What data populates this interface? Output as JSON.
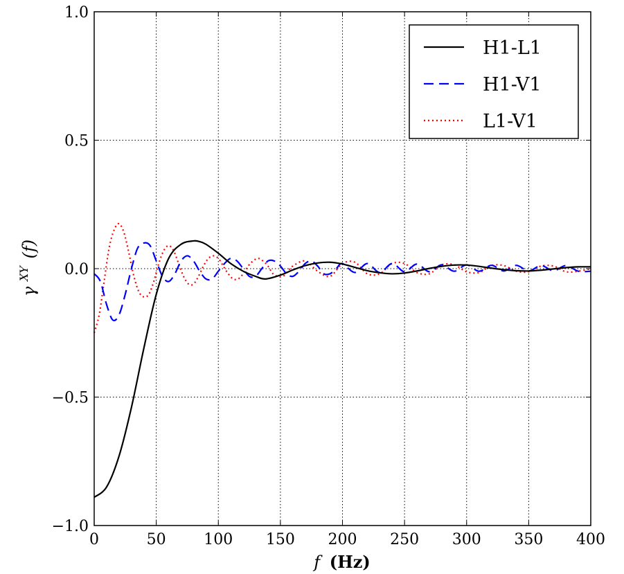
{
  "chart_data": {
    "type": "line",
    "xlabel_var": "f",
    "xlabel_unit": "(Hz)",
    "ylabel_base": "γ",
    "ylabel_sup": "XY",
    "ylabel_arg": "(f)",
    "xlim": [
      0,
      400
    ],
    "ylim": [
      -1.0,
      1.0
    ],
    "x_ticks": [
      0,
      50,
      100,
      150,
      200,
      250,
      300,
      350,
      400
    ],
    "x_tick_labels": [
      "0",
      "50",
      "100",
      "150",
      "200",
      "250",
      "300",
      "350",
      "400"
    ],
    "y_ticks": [
      -1.0,
      -0.5,
      0.0,
      0.5,
      1.0
    ],
    "y_tick_labels": [
      "−1.0",
      "−0.5",
      "0.0",
      "0.5",
      "1.0"
    ],
    "grid": true,
    "legend_position": "top-right",
    "series": [
      {
        "name": "H1-L1",
        "color": "#000000",
        "style": "solid",
        "x": [
          0,
          10,
          20,
          30,
          40,
          50,
          60,
          70,
          80,
          85,
          90,
          100,
          110,
          120,
          130,
          138,
          150,
          160,
          170,
          180,
          190,
          200,
          210,
          220,
          230,
          240,
          250,
          260,
          270,
          280,
          290,
          300,
          310,
          320,
          330,
          340,
          350,
          360,
          370,
          380,
          390,
          400
        ],
        "y": [
          -0.89,
          -0.85,
          -0.73,
          -0.54,
          -0.31,
          -0.1,
          0.04,
          0.095,
          0.108,
          0.105,
          0.095,
          0.06,
          0.02,
          -0.01,
          -0.03,
          -0.04,
          -0.025,
          -0.005,
          0.012,
          0.022,
          0.025,
          0.018,
          0.005,
          -0.008,
          -0.016,
          -0.02,
          -0.017,
          -0.009,
          0.001,
          0.009,
          0.014,
          0.014,
          0.009,
          0.002,
          -0.004,
          -0.008,
          -0.009,
          -0.006,
          -0.001,
          0.004,
          0.007,
          0.007
        ]
      },
      {
        "name": "H1-V1",
        "color": "#0000ff",
        "style": "dashed",
        "x": [
          0,
          5,
          10,
          15,
          20,
          25,
          30,
          35,
          40,
          45,
          50,
          55,
          60,
          65,
          70,
          75,
          80,
          85,
          90,
          95,
          100,
          105,
          110,
          115,
          120,
          125,
          130,
          135,
          140,
          145,
          150,
          155,
          160,
          165,
          170,
          175,
          180,
          185,
          190,
          195,
          200,
          210,
          220,
          230,
          240,
          250,
          260,
          270,
          280,
          290,
          300,
          310,
          320,
          330,
          340,
          350,
          360,
          370,
          380,
          390,
          400
        ],
        "y": [
          -0.02,
          -0.05,
          -0.14,
          -0.2,
          -0.18,
          -0.1,
          0.0,
          0.08,
          0.1,
          0.09,
          0.03,
          -0.03,
          -0.05,
          -0.02,
          0.03,
          0.05,
          0.03,
          -0.01,
          -0.04,
          -0.04,
          -0.01,
          0.02,
          0.04,
          0.03,
          0.0,
          -0.03,
          -0.03,
          0.0,
          0.03,
          0.03,
          0.01,
          -0.02,
          -0.03,
          -0.01,
          0.02,
          0.03,
          0.01,
          -0.02,
          -0.02,
          0.0,
          0.02,
          -0.015,
          0.02,
          -0.015,
          0.02,
          -0.012,
          0.018,
          -0.012,
          0.015,
          -0.01,
          0.015,
          -0.01,
          0.013,
          -0.009,
          0.013,
          -0.009,
          0.012,
          -0.008,
          0.012,
          -0.01,
          -0.01
        ]
      },
      {
        "name": "L1-V1",
        "color": "#ff0000",
        "style": "dotted",
        "x": [
          0,
          4,
          8,
          12,
          16,
          20,
          24,
          28,
          32,
          36,
          40,
          44,
          48,
          52,
          56,
          60,
          64,
          68,
          72,
          76,
          80,
          84,
          88,
          92,
          96,
          100,
          104,
          108,
          112,
          116,
          120,
          124,
          128,
          132,
          136,
          140,
          144,
          148,
          152,
          156,
          160,
          170,
          180,
          190,
          200,
          210,
          220,
          230,
          240,
          250,
          260,
          270,
          280,
          290,
          300,
          310,
          320,
          330,
          340,
          350,
          360,
          370,
          380,
          390,
          400
        ],
        "y": [
          -0.25,
          -0.18,
          -0.05,
          0.08,
          0.15,
          0.175,
          0.14,
          0.06,
          -0.03,
          -0.09,
          -0.11,
          -0.1,
          -0.05,
          0.02,
          0.07,
          0.09,
          0.07,
          0.02,
          -0.03,
          -0.06,
          -0.06,
          -0.03,
          0.01,
          0.04,
          0.05,
          0.04,
          0.01,
          -0.02,
          -0.04,
          -0.04,
          -0.02,
          0.01,
          0.03,
          0.04,
          0.03,
          0.01,
          -0.02,
          -0.03,
          -0.03,
          -0.01,
          0.01,
          0.03,
          -0.01,
          -0.03,
          0.02,
          0.025,
          -0.02,
          -0.02,
          0.02,
          0.02,
          -0.015,
          -0.02,
          0.015,
          0.015,
          -0.012,
          -0.015,
          0.012,
          0.012,
          -0.01,
          -0.012,
          0.01,
          0.01,
          -0.012,
          -0.01,
          0.0
        ]
      }
    ]
  }
}
